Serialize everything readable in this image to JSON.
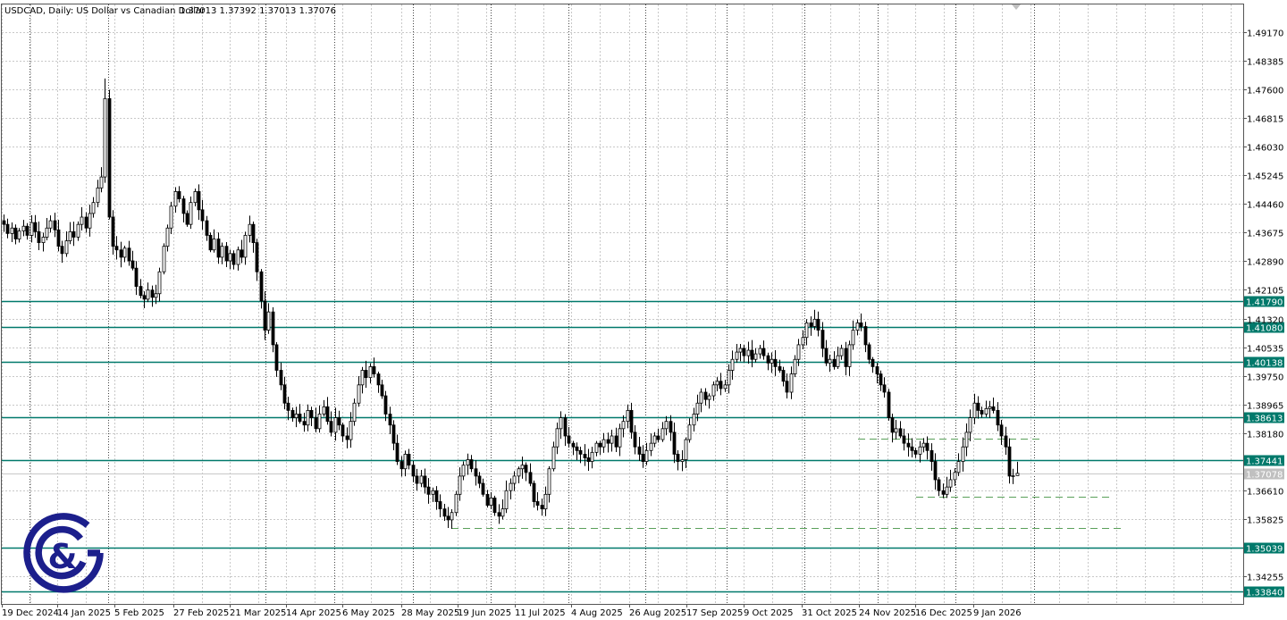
{
  "header": {
    "symbol_line": "USDCAD, Daily:  US Dollar vs Canadian Dollar",
    "ohlc": "1.37013 1.37392 1.37013 1.37076"
  },
  "colors": {
    "level_line": "#00796b",
    "level_label_bg": "#00796b",
    "current_label_bg": "#c0c0c0",
    "dashed_support": "#5aa05a",
    "candle": "#000000",
    "grid": "#c8c8c8",
    "logo": "#1c1f8c"
  },
  "logo": {
    "ampersand": "&"
  },
  "chart_data": {
    "type": "candlestick",
    "symbol": "USDCAD",
    "timeframe": "Daily",
    "ylim": [
      1.3355,
      1.4995
    ],
    "grid": true,
    "y_ticks": [
      "1.49170",
      "1.48385",
      "1.47600",
      "1.46815",
      "1.46030",
      "1.45245",
      "1.44460",
      "1.43675",
      "1.42890",
      "1.42105",
      "1.41320",
      "1.40535",
      "1.39750",
      "1.38965",
      "1.38180",
      "1.36610",
      "1.35825",
      "1.34255"
    ],
    "x_ticks": [
      "19 Dec 2024",
      "14 Jan 2025",
      "5 Feb 2025",
      "27 Feb 2025",
      "21 Mar 2025",
      "14 Apr 2025",
      "6 May 2025",
      "28 May 2025",
      "19 Jun 2025",
      "11 Jul 2025",
      "4 Aug 2025",
      "26 Aug 2025",
      "17 Sep 2025",
      "9 Oct 2025",
      "31 Oct 2025",
      "24 Nov 2025",
      "16 Dec 2025",
      "9 Jan 2026"
    ],
    "horizontal_levels": [
      "1.41790",
      "1.41080",
      "1.40138",
      "1.38613",
      "1.37441",
      "1.35039",
      "1.33840"
    ],
    "current_price": "1.37078",
    "dashed_supports": [
      1.3803,
      1.3644,
      1.3558
    ],
    "last_candle": {
      "open": 1.37013,
      "high": 1.37392,
      "low": 1.37013,
      "close": 1.37076
    },
    "notable_extremes": [
      {
        "index": 26,
        "high": 1.479,
        "open": 1.452
      }
    ],
    "closes": [
      1.439,
      1.4365,
      1.438,
      1.435,
      1.4372,
      1.4385,
      1.436,
      1.4395,
      1.437,
      1.434,
      1.4355,
      1.438,
      1.44,
      1.4375,
      1.433,
      1.431,
      1.4345,
      1.437,
      1.4355,
      1.439,
      1.441,
      1.438,
      1.442,
      1.445,
      1.449,
      1.452,
      1.4735,
      1.441,
      1.433,
      1.432,
      1.43,
      1.4325,
      1.429,
      1.427,
      1.422,
      1.4195,
      1.4185,
      1.421,
      1.419,
      1.42,
      1.426,
      1.433,
      1.438,
      1.444,
      1.448,
      1.446,
      1.442,
      1.439,
      1.445,
      1.448,
      1.443,
      1.44,
      1.436,
      1.432,
      1.435,
      1.43,
      1.433,
      1.429,
      1.431,
      1.428,
      1.432,
      1.43,
      1.436,
      1.439,
      1.434,
      1.426,
      1.418,
      1.41,
      1.415,
      1.406,
      1.399,
      1.395,
      1.39,
      1.388,
      1.386,
      1.387,
      1.385,
      1.384,
      1.388,
      1.386,
      1.383,
      1.387,
      1.389,
      1.385,
      1.382,
      1.386,
      1.384,
      1.381,
      1.38,
      1.385,
      1.39,
      1.395,
      1.399,
      1.397,
      1.4,
      1.398,
      1.395,
      1.392,
      1.387,
      1.384,
      1.379,
      1.374,
      1.372,
      1.376,
      1.373,
      1.37,
      1.368,
      1.37,
      1.367,
      1.365,
      1.366,
      1.363,
      1.361,
      1.359,
      1.358,
      1.36,
      1.365,
      1.37,
      1.373,
      1.3745,
      1.372,
      1.37,
      1.368,
      1.365,
      1.362,
      1.364,
      1.36,
      1.359,
      1.361,
      1.366,
      1.368,
      1.37,
      1.372,
      1.373,
      1.371,
      1.368,
      1.363,
      1.362,
      1.361,
      1.365,
      1.372,
      1.378,
      1.383,
      1.386,
      1.381,
      1.379,
      1.378,
      1.377,
      1.376,
      1.375,
      1.374,
      1.3765,
      1.379,
      1.378,
      1.38,
      1.379,
      1.381,
      1.378,
      1.383,
      1.385,
      1.388,
      1.382,
      1.378,
      1.376,
      1.374,
      1.377,
      1.379,
      1.381,
      1.38,
      1.383,
      1.385,
      1.382,
      1.376,
      1.374,
      1.3745,
      1.38,
      1.384,
      1.387,
      1.39,
      1.393,
      1.391,
      1.392,
      1.395,
      1.396,
      1.394,
      1.395,
      1.399,
      1.402,
      1.404,
      1.405,
      1.403,
      1.4045,
      1.402,
      1.4035,
      1.405,
      1.403,
      1.401,
      1.402,
      1.4,
      1.399,
      1.396,
      1.393,
      1.398,
      1.402,
      1.406,
      1.408,
      1.412,
      1.411,
      1.413,
      1.41,
      1.405,
      1.401,
      1.402,
      1.4,
      1.403,
      1.405,
      1.4,
      1.406,
      1.41,
      1.412,
      1.411,
      1.406,
      1.402,
      1.4,
      1.398,
      1.395,
      1.393,
      1.386,
      1.382,
      1.383,
      1.381,
      1.379,
      1.378,
      1.377,
      1.376,
      1.378,
      1.379,
      1.377,
      1.374,
      1.369,
      1.366,
      1.365,
      1.367,
      1.369,
      1.371,
      1.374,
      1.378,
      1.382,
      1.386,
      1.39,
      1.388,
      1.387,
      1.3885,
      1.389,
      1.388,
      1.384,
      1.381,
      1.378,
      1.37,
      1.3701,
      1.37076
    ]
  }
}
